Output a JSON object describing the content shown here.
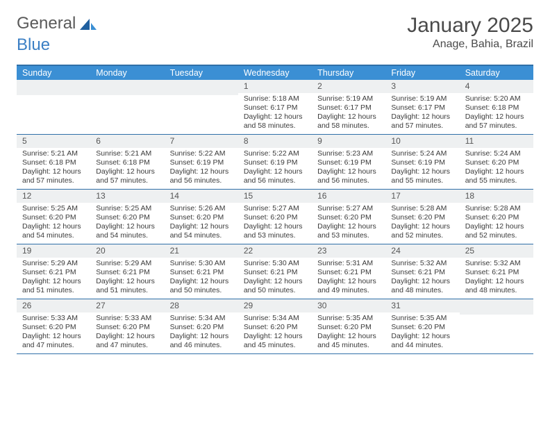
{
  "logo": {
    "word1": "General",
    "word2": "Blue"
  },
  "title": {
    "month": "January 2025",
    "location": "Anage, Bahia, Brazil"
  },
  "colors": {
    "header_bg": "#3b8fd4",
    "header_text": "#ffffff",
    "border": "#2f6fa8",
    "daynum_bg": "#eef0f1",
    "text": "#3a3a3a",
    "logo_gray": "#5a5a5a",
    "logo_blue": "#3b7fc4"
  },
  "fonts": {
    "title_size": 30,
    "location_size": 16,
    "dayheader_size": 12.5,
    "cell_size": 10.5
  },
  "day_names": [
    "Sunday",
    "Monday",
    "Tuesday",
    "Wednesday",
    "Thursday",
    "Friday",
    "Saturday"
  ],
  "weeks": [
    [
      {
        "n": "",
        "sr": "",
        "ss": "",
        "dl": ""
      },
      {
        "n": "",
        "sr": "",
        "ss": "",
        "dl": ""
      },
      {
        "n": "",
        "sr": "",
        "ss": "",
        "dl": ""
      },
      {
        "n": "1",
        "sr": "Sunrise: 5:18 AM",
        "ss": "Sunset: 6:17 PM",
        "dl": "Daylight: 12 hours and 58 minutes."
      },
      {
        "n": "2",
        "sr": "Sunrise: 5:19 AM",
        "ss": "Sunset: 6:17 PM",
        "dl": "Daylight: 12 hours and 58 minutes."
      },
      {
        "n": "3",
        "sr": "Sunrise: 5:19 AM",
        "ss": "Sunset: 6:17 PM",
        "dl": "Daylight: 12 hours and 57 minutes."
      },
      {
        "n": "4",
        "sr": "Sunrise: 5:20 AM",
        "ss": "Sunset: 6:18 PM",
        "dl": "Daylight: 12 hours and 57 minutes."
      }
    ],
    [
      {
        "n": "5",
        "sr": "Sunrise: 5:21 AM",
        "ss": "Sunset: 6:18 PM",
        "dl": "Daylight: 12 hours and 57 minutes."
      },
      {
        "n": "6",
        "sr": "Sunrise: 5:21 AM",
        "ss": "Sunset: 6:18 PM",
        "dl": "Daylight: 12 hours and 57 minutes."
      },
      {
        "n": "7",
        "sr": "Sunrise: 5:22 AM",
        "ss": "Sunset: 6:19 PM",
        "dl": "Daylight: 12 hours and 56 minutes."
      },
      {
        "n": "8",
        "sr": "Sunrise: 5:22 AM",
        "ss": "Sunset: 6:19 PM",
        "dl": "Daylight: 12 hours and 56 minutes."
      },
      {
        "n": "9",
        "sr": "Sunrise: 5:23 AM",
        "ss": "Sunset: 6:19 PM",
        "dl": "Daylight: 12 hours and 56 minutes."
      },
      {
        "n": "10",
        "sr": "Sunrise: 5:24 AM",
        "ss": "Sunset: 6:19 PM",
        "dl": "Daylight: 12 hours and 55 minutes."
      },
      {
        "n": "11",
        "sr": "Sunrise: 5:24 AM",
        "ss": "Sunset: 6:20 PM",
        "dl": "Daylight: 12 hours and 55 minutes."
      }
    ],
    [
      {
        "n": "12",
        "sr": "Sunrise: 5:25 AM",
        "ss": "Sunset: 6:20 PM",
        "dl": "Daylight: 12 hours and 54 minutes."
      },
      {
        "n": "13",
        "sr": "Sunrise: 5:25 AM",
        "ss": "Sunset: 6:20 PM",
        "dl": "Daylight: 12 hours and 54 minutes."
      },
      {
        "n": "14",
        "sr": "Sunrise: 5:26 AM",
        "ss": "Sunset: 6:20 PM",
        "dl": "Daylight: 12 hours and 54 minutes."
      },
      {
        "n": "15",
        "sr": "Sunrise: 5:27 AM",
        "ss": "Sunset: 6:20 PM",
        "dl": "Daylight: 12 hours and 53 minutes."
      },
      {
        "n": "16",
        "sr": "Sunrise: 5:27 AM",
        "ss": "Sunset: 6:20 PM",
        "dl": "Daylight: 12 hours and 53 minutes."
      },
      {
        "n": "17",
        "sr": "Sunrise: 5:28 AM",
        "ss": "Sunset: 6:20 PM",
        "dl": "Daylight: 12 hours and 52 minutes."
      },
      {
        "n": "18",
        "sr": "Sunrise: 5:28 AM",
        "ss": "Sunset: 6:20 PM",
        "dl": "Daylight: 12 hours and 52 minutes."
      }
    ],
    [
      {
        "n": "19",
        "sr": "Sunrise: 5:29 AM",
        "ss": "Sunset: 6:21 PM",
        "dl": "Daylight: 12 hours and 51 minutes."
      },
      {
        "n": "20",
        "sr": "Sunrise: 5:29 AM",
        "ss": "Sunset: 6:21 PM",
        "dl": "Daylight: 12 hours and 51 minutes."
      },
      {
        "n": "21",
        "sr": "Sunrise: 5:30 AM",
        "ss": "Sunset: 6:21 PM",
        "dl": "Daylight: 12 hours and 50 minutes."
      },
      {
        "n": "22",
        "sr": "Sunrise: 5:30 AM",
        "ss": "Sunset: 6:21 PM",
        "dl": "Daylight: 12 hours and 50 minutes."
      },
      {
        "n": "23",
        "sr": "Sunrise: 5:31 AM",
        "ss": "Sunset: 6:21 PM",
        "dl": "Daylight: 12 hours and 49 minutes."
      },
      {
        "n": "24",
        "sr": "Sunrise: 5:32 AM",
        "ss": "Sunset: 6:21 PM",
        "dl": "Daylight: 12 hours and 48 minutes."
      },
      {
        "n": "25",
        "sr": "Sunrise: 5:32 AM",
        "ss": "Sunset: 6:21 PM",
        "dl": "Daylight: 12 hours and 48 minutes."
      }
    ],
    [
      {
        "n": "26",
        "sr": "Sunrise: 5:33 AM",
        "ss": "Sunset: 6:20 PM",
        "dl": "Daylight: 12 hours and 47 minutes."
      },
      {
        "n": "27",
        "sr": "Sunrise: 5:33 AM",
        "ss": "Sunset: 6:20 PM",
        "dl": "Daylight: 12 hours and 47 minutes."
      },
      {
        "n": "28",
        "sr": "Sunrise: 5:34 AM",
        "ss": "Sunset: 6:20 PM",
        "dl": "Daylight: 12 hours and 46 minutes."
      },
      {
        "n": "29",
        "sr": "Sunrise: 5:34 AM",
        "ss": "Sunset: 6:20 PM",
        "dl": "Daylight: 12 hours and 45 minutes."
      },
      {
        "n": "30",
        "sr": "Sunrise: 5:35 AM",
        "ss": "Sunset: 6:20 PM",
        "dl": "Daylight: 12 hours and 45 minutes."
      },
      {
        "n": "31",
        "sr": "Sunrise: 5:35 AM",
        "ss": "Sunset: 6:20 PM",
        "dl": "Daylight: 12 hours and 44 minutes."
      },
      {
        "n": "",
        "sr": "",
        "ss": "",
        "dl": ""
      }
    ]
  ]
}
